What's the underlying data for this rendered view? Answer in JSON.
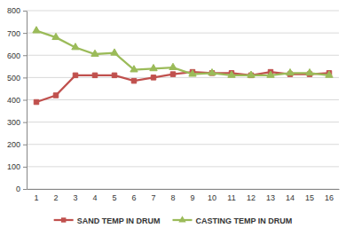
{
  "chart_data": {
    "type": "line",
    "categories": [
      1,
      2,
      3,
      4,
      5,
      6,
      7,
      8,
      9,
      10,
      11,
      12,
      13,
      14,
      15,
      16
    ],
    "series": [
      {
        "name": "SAND TEMP IN DRUM",
        "color": "#c0504d",
        "marker": "square",
        "line_style": "solid",
        "values": [
          390,
          420,
          510,
          510,
          510,
          485,
          500,
          515,
          525,
          520,
          520,
          510,
          525,
          515,
          515,
          520
        ]
      },
      {
        "name": "CASTING TEMP IN DRUM",
        "color": "#9bbb59",
        "marker": "triangle",
        "line_style": "solid",
        "values": [
          710,
          680,
          635,
          605,
          610,
          535,
          540,
          545,
          515,
          520,
          510,
          510,
          510,
          520,
          520,
          510
        ]
      }
    ],
    "ylim": [
      0,
      800
    ],
    "yticks": [
      0,
      100,
      200,
      300,
      400,
      500,
      600,
      700,
      800
    ],
    "grid": true,
    "legend": "bottom"
  }
}
